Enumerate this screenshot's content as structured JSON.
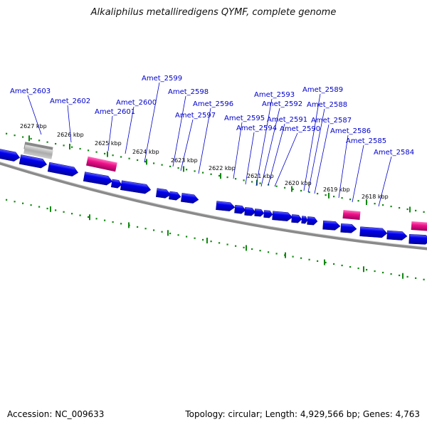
{
  "title": "Alkaliphilus metalliredigens QYMF, complete genome",
  "accession": "Accession: NC_009633",
  "summary": "Topology: circular; Length: 4,929,566 bp; Genes: 4,763",
  "colors": {
    "cds": "#0000ee",
    "rna": "#ee1188",
    "pseudo": "#aaaaaa",
    "backbone": "#777777",
    "tick": "#118811",
    "leader": "#0000cc"
  },
  "kbp_ticks": [
    {
      "label": "2627 kbp"
    },
    {
      "label": "2626 kbp"
    },
    {
      "label": "2625 kbp"
    },
    {
      "label": "2624 kbp"
    },
    {
      "label": "2623 kbp"
    },
    {
      "label": "2622 kbp"
    },
    {
      "label": "2621 kbp"
    },
    {
      "label": "2620 kbp"
    },
    {
      "label": "2619 kbp"
    },
    {
      "label": "2618 kbp"
    }
  ],
  "gene_labels": [
    {
      "label": "Amet_2603"
    },
    {
      "label": "Amet_2602"
    },
    {
      "label": "Amet_2601"
    },
    {
      "label": "Amet_2600"
    },
    {
      "label": "Amet_2599"
    },
    {
      "label": "Amet_2598"
    },
    {
      "label": "Amet_2597"
    },
    {
      "label": "Amet_2596"
    },
    {
      "label": "Amet_2595"
    },
    {
      "label": "Amet_2594"
    },
    {
      "label": "Amet_2593"
    },
    {
      "label": "Amet_2592"
    },
    {
      "label": "Amet_2591"
    },
    {
      "label": "Amet_2590"
    },
    {
      "label": "Amet_2589"
    },
    {
      "label": "Amet_2588"
    },
    {
      "label": "Amet_2587"
    },
    {
      "label": "Amet_2586"
    },
    {
      "label": "Amet_2585"
    },
    {
      "label": "Amet_2584"
    }
  ]
}
